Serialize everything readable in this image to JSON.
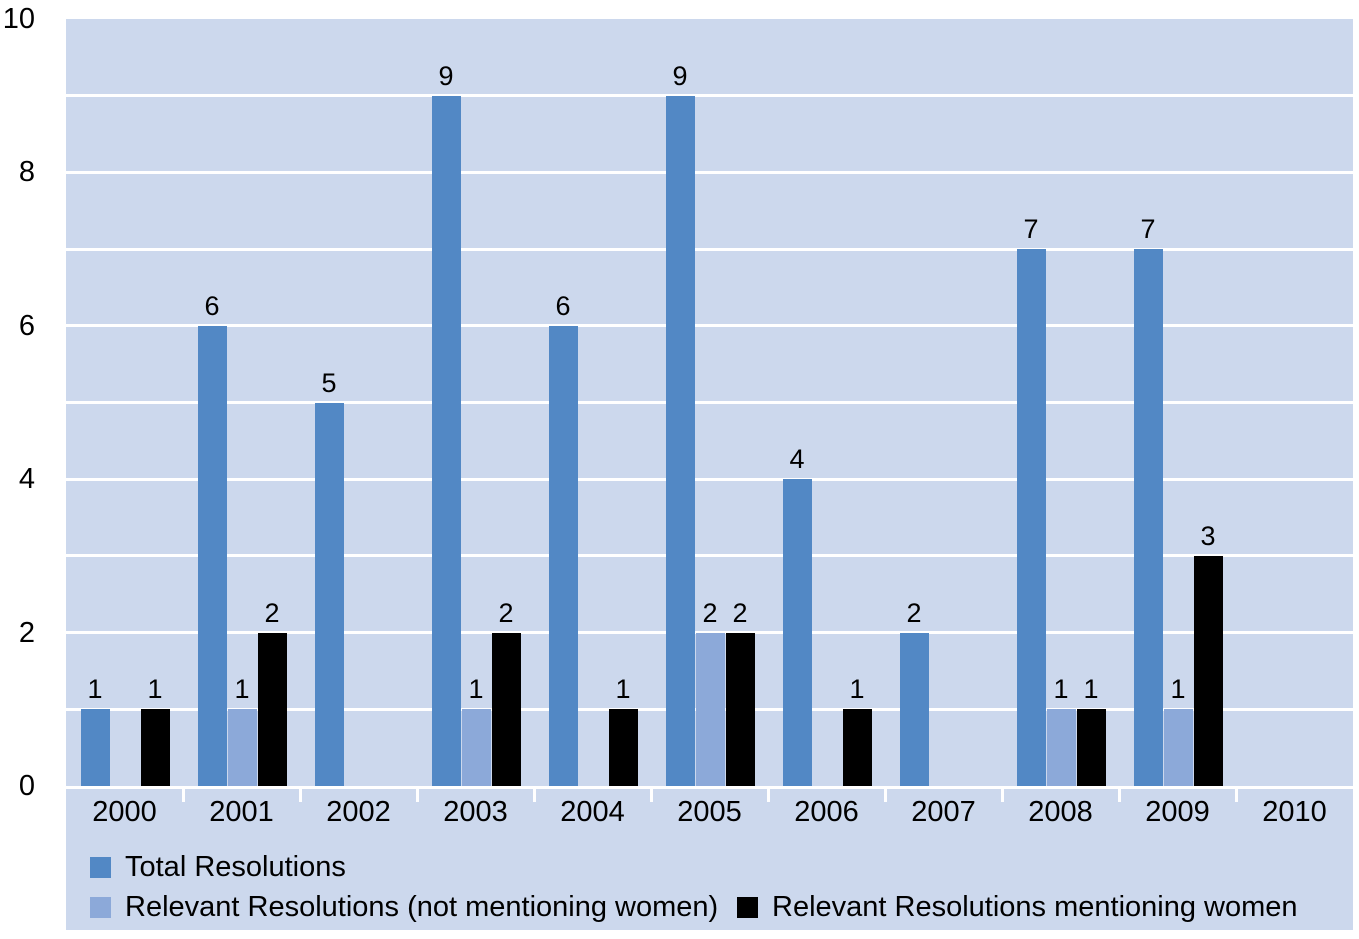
{
  "chart_data": {
    "type": "bar",
    "title": "",
    "xlabel": "",
    "ylabel": "",
    "categories": [
      "2000",
      "2001",
      "2002",
      "2003",
      "2004",
      "2005",
      "2006",
      "2007",
      "2008",
      "2009",
      "2010"
    ],
    "series": [
      {
        "name": "Total Resolutions",
        "color": "#5288c5",
        "values": [
          1,
          6,
          5,
          9,
          6,
          9,
          4,
          2,
          7,
          7,
          null
        ]
      },
      {
        "name": "Relevant Resolutions (not mentioning women)",
        "color": "#8ca9d9",
        "values": [
          null,
          1,
          null,
          1,
          null,
          2,
          null,
          null,
          1,
          1,
          null
        ]
      },
      {
        "name": "Relevant Resolutions mentioning women",
        "color": "#000000",
        "values": [
          1,
          2,
          null,
          2,
          1,
          2,
          1,
          null,
          1,
          3,
          null
        ]
      }
    ],
    "ylim": [
      0,
      10
    ],
    "yticks_labeled": [
      "10",
      "8",
      "6",
      "4",
      "2",
      "0"
    ],
    "ytick_values": [
      10,
      8,
      6,
      4,
      2,
      0
    ],
    "gridline_step": 1,
    "grid_color": "#ffffff",
    "plot_bg": "#ccd8ed",
    "bar_value_labels": true,
    "legend_position": "bottom-left"
  }
}
